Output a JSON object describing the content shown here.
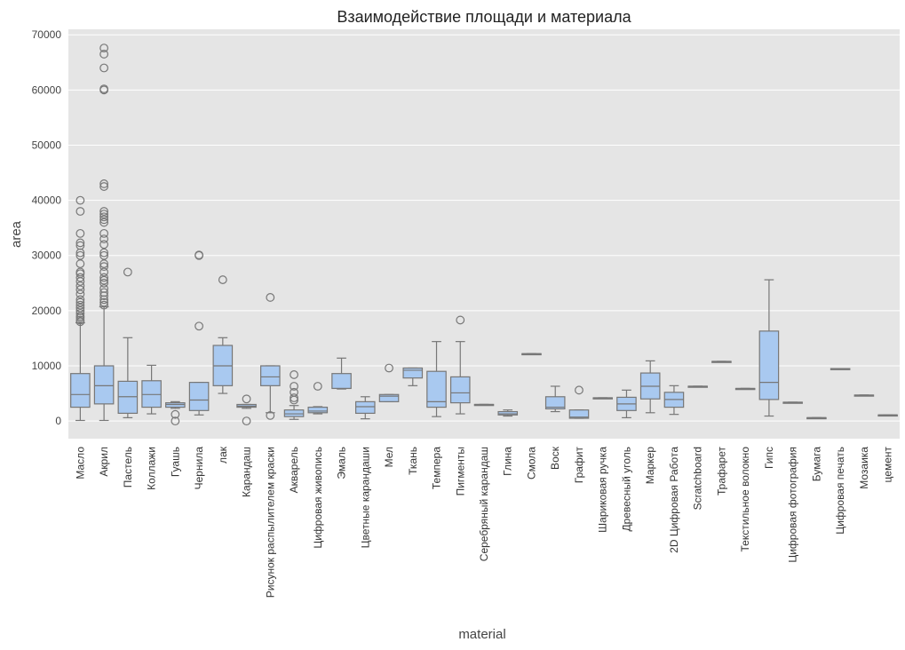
{
  "chart_data": {
    "type": "boxplot",
    "title": "Взаимодействие площади и материала",
    "xlabel": "material",
    "ylabel": "area",
    "ylim": [
      -3200,
      71000
    ],
    "yticks": [
      0,
      10000,
      20000,
      30000,
      40000,
      50000,
      60000,
      70000
    ],
    "ytick_labels": [
      "0",
      "10000",
      "20000",
      "30000",
      "40000",
      "50000",
      "60000",
      "70000"
    ],
    "grid": true,
    "colors": {
      "background": "#e5e5e5",
      "grid": "#ffffff",
      "box_fill": "#a9c9f0",
      "line": "#777777"
    },
    "categories": [
      "Масло",
      "Акрил",
      "Пастель",
      "Коллажи",
      "Гуашь",
      "Чернила",
      "лак",
      "Карандаш",
      "Рисунок распылителем краски",
      "Акварель",
      "Цифровая живопись",
      "Эмаль",
      "Цветные карандаши",
      "Мел",
      "Ткань",
      "Темпера",
      "Пигменты",
      "Серебряный карандаш",
      "Глина",
      "Смола",
      "Воск",
      "Графит",
      "Шариковая ручка",
      "Древесный уголь",
      "Маркер",
      "2D Цифровая Работа",
      "Scratchboard",
      "Трафарет",
      "Текстильное волокно",
      "Гипс",
      "Цифровая фотография",
      "Бумага",
      "Цифровая печать",
      "Мозаика",
      "цемент"
    ],
    "boxes": [
      {
        "whislo": 100,
        "q1": 2500,
        "med": 4800,
        "q3": 8600,
        "whishi": 17800,
        "fliers": [
          18000,
          18300,
          18700,
          19000,
          19500,
          20000,
          20500,
          21000,
          21500,
          22000,
          23000,
          23800,
          24500,
          25300,
          26000,
          26700,
          27000,
          28500,
          30000,
          30500,
          31800,
          32300,
          34000,
          38000,
          40000
        ]
      },
      {
        "whislo": 100,
        "q1": 3100,
        "med": 6400,
        "q3": 10000,
        "whishi": 20700,
        "fliers": [
          21000,
          21500,
          22000,
          22700,
          23300,
          24000,
          25000,
          25500,
          26000,
          27000,
          28000,
          28500,
          30000,
          30500,
          32000,
          33000,
          34000,
          36000,
          36500,
          37000,
          37500,
          38000,
          42500,
          43000,
          60000,
          60200,
          64000,
          66500,
          67600
        ]
      },
      {
        "whislo": 600,
        "q1": 1400,
        "med": 4400,
        "q3": 7200,
        "whishi": 15100,
        "fliers": [
          27000
        ]
      },
      {
        "whislo": 1300,
        "q1": 2500,
        "med": 4800,
        "q3": 7300,
        "whishi": 10100,
        "fliers": []
      },
      {
        "whislo": 2300,
        "q1": 2500,
        "med": 3000,
        "q3": 3300,
        "whishi": 3500,
        "fliers": [
          0,
          1200
        ]
      },
      {
        "whislo": 1100,
        "q1": 1900,
        "med": 3800,
        "q3": 7000,
        "whishi": 7000,
        "fliers": [
          17200,
          30000,
          30100
        ]
      },
      {
        "whislo": 5000,
        "q1": 6400,
        "med": 10000,
        "q3": 13700,
        "whishi": 15100,
        "fliers": [
          25600
        ]
      },
      {
        "whislo": 2300,
        "q1": 2500,
        "med": 2700,
        "q3": 3000,
        "whishi": 3000,
        "fliers": [
          0,
          4000
        ]
      },
      {
        "whislo": 1500,
        "q1": 6400,
        "med": 8000,
        "q3": 10000,
        "whishi": 10000,
        "fliers": [
          1000,
          22400
        ]
      },
      {
        "whislo": 300,
        "q1": 800,
        "med": 1300,
        "q3": 2000,
        "whishi": 2800,
        "fliers": [
          3800,
          4200,
          5200,
          6300,
          8400
        ]
      },
      {
        "whislo": 1300,
        "q1": 1500,
        "med": 1800,
        "q3": 2500,
        "whishi": 2600,
        "fliers": [
          6300
        ]
      },
      {
        "whislo": 5800,
        "q1": 5900,
        "med": 5900,
        "q3": 8600,
        "whishi": 11400,
        "fliers": []
      },
      {
        "whislo": 400,
        "q1": 1400,
        "med": 2600,
        "q3": 3500,
        "whishi": 4400,
        "fliers": []
      },
      {
        "whislo": 3500,
        "q1": 3500,
        "med": 4500,
        "q3": 4800,
        "whishi": 4800,
        "fliers": [
          9600
        ]
      },
      {
        "whislo": 6400,
        "q1": 7800,
        "med": 9200,
        "q3": 9600,
        "whishi": 9600,
        "fliers": []
      },
      {
        "whislo": 800,
        "q1": 2500,
        "med": 3500,
        "q3": 9000,
        "whishi": 14400,
        "fliers": []
      },
      {
        "whislo": 1300,
        "q1": 3300,
        "med": 5100,
        "q3": 8000,
        "whishi": 14400,
        "fliers": [
          18300
        ]
      },
      {
        "whislo": 3000,
        "q1": 3000,
        "med": 3000,
        "q3": 3000,
        "whishi": 3000,
        "fliers": []
      },
      {
        "whislo": 900,
        "q1": 1100,
        "med": 1300,
        "q3": 1700,
        "whishi": 2000,
        "fliers": []
      },
      {
        "whislo": 12200,
        "q1": 12200,
        "med": 12200,
        "q3": 12200,
        "whishi": 12200,
        "fliers": []
      },
      {
        "whislo": 1700,
        "q1": 2200,
        "med": 2500,
        "q3": 4400,
        "whishi": 6300,
        "fliers": []
      },
      {
        "whislo": 500,
        "q1": 500,
        "med": 700,
        "q3": 2000,
        "whishi": 2000,
        "fliers": [
          5600
        ]
      },
      {
        "whislo": 4200,
        "q1": 4200,
        "med": 4200,
        "q3": 4200,
        "whishi": 4200,
        "fliers": []
      },
      {
        "whislo": 600,
        "q1": 1900,
        "med": 3100,
        "q3": 4300,
        "whishi": 5600,
        "fliers": []
      },
      {
        "whislo": 1500,
        "q1": 4000,
        "med": 6300,
        "q3": 8700,
        "whishi": 10900,
        "fliers": []
      },
      {
        "whislo": 1200,
        "q1": 2500,
        "med": 3900,
        "q3": 5200,
        "whishi": 6400,
        "fliers": []
      },
      {
        "whislo": 6300,
        "q1": 6300,
        "med": 6300,
        "q3": 6300,
        "whishi": 6300,
        "fliers": []
      },
      {
        "whislo": 10800,
        "q1": 10800,
        "med": 10800,
        "q3": 10800,
        "whishi": 10800,
        "fliers": []
      },
      {
        "whislo": 5900,
        "q1": 5900,
        "med": 5900,
        "q3": 5900,
        "whishi": 5900,
        "fliers": []
      },
      {
        "whislo": 900,
        "q1": 3900,
        "med": 7000,
        "q3": 16300,
        "whishi": 25600,
        "fliers": []
      },
      {
        "whislo": 3400,
        "q1": 3400,
        "med": 3400,
        "q3": 3400,
        "whishi": 3400,
        "fliers": []
      },
      {
        "whislo": 600,
        "q1": 600,
        "med": 600,
        "q3": 600,
        "whishi": 600,
        "fliers": []
      },
      {
        "whislo": 9500,
        "q1": 9500,
        "med": 9500,
        "q3": 9500,
        "whishi": 9500,
        "fliers": []
      },
      {
        "whislo": 4700,
        "q1": 4700,
        "med": 4700,
        "q3": 4700,
        "whishi": 4700,
        "fliers": []
      },
      {
        "whislo": 1100,
        "q1": 1100,
        "med": 1100,
        "q3": 1100,
        "whishi": 1100,
        "fliers": []
      }
    ]
  }
}
